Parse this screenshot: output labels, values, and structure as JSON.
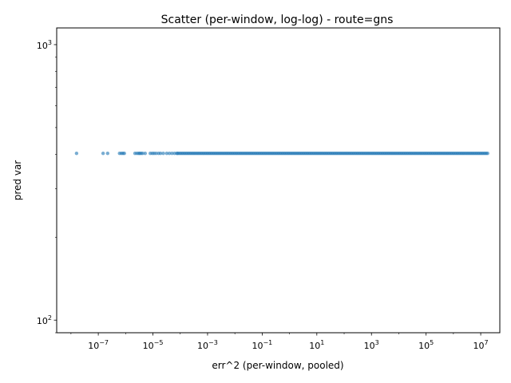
{
  "chart_data": {
    "type": "scatter",
    "title": "Scatter (per-window, log-log) - route=gns",
    "xlabel": "err^2 (per-window, pooled)",
    "ylabel": "pred var",
    "xscale": "log",
    "yscale": "log",
    "xlim": [
      3e-09,
      50000000.0
    ],
    "ylim": [
      90,
      1150
    ],
    "x_ticks": [
      {
        "value": 1e-07,
        "base": "10",
        "exp": "−7"
      },
      {
        "value": 1e-05,
        "base": "10",
        "exp": "−5"
      },
      {
        "value": 0.001,
        "base": "10",
        "exp": "−3"
      },
      {
        "value": 0.1,
        "base": "10",
        "exp": "−1"
      },
      {
        "value": 10.0,
        "base": "10",
        "exp": "1"
      },
      {
        "value": 1000.0,
        "base": "10",
        "exp": "3"
      },
      {
        "value": 100000.0,
        "base": "10",
        "exp": "5"
      },
      {
        "value": 10000000.0,
        "base": "10",
        "exp": "7"
      }
    ],
    "y_ticks": [
      {
        "value": 100,
        "base": "10",
        "exp": "2"
      },
      {
        "value": 1000,
        "base": "10",
        "exp": "3"
      }
    ],
    "grid": false,
    "color": "#1f77b4",
    "y_value": 403,
    "scattered_x": [
      1.6e-08,
      1.5e-07,
      2.2e-07,
      6e-07,
      7e-07,
      8e-07,
      9e-07,
      2.2e-06,
      2.6e-06,
      3e-06,
      3.3e-06,
      3.7e-06,
      4.2e-06,
      5.2e-06,
      8e-06,
      9.5e-06,
      1.1e-05,
      1.3e-05,
      1.6e-05,
      1.9e-05,
      2.4e-05,
      3.2e-05,
      4e-05,
      5e-05,
      6.2e-05,
      7.5e-05
    ],
    "dense_x_range": [
      8e-05,
      18000000.0
    ]
  }
}
